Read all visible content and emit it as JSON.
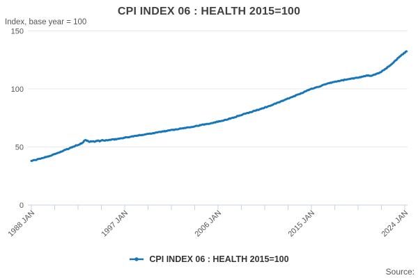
{
  "chart_data": {
    "type": "line",
    "title": "CPI INDEX 06 : HEALTH 2015=100",
    "subtitle": "Index, base year = 100",
    "legend_label": "CPI INDEX 06 : HEALTH 2015=100",
    "source_label": "Source:",
    "x_axis": {
      "tick_labels": [
        "1988 JAN",
        "1997 JAN",
        "2006 JAN",
        "2015 JAN",
        "2024 JAN"
      ],
      "tick_label_years": [
        1988,
        1997,
        2006,
        2015,
        2024
      ],
      "minor_ticks_between_labels": 3,
      "range": [
        1988,
        2024.3
      ]
    },
    "y_axis": {
      "ticks": [
        0,
        50,
        100,
        150
      ],
      "range": [
        0,
        150
      ]
    },
    "legend_position": "bottom-center",
    "grid": "horizontal-only",
    "colors": {
      "line": "#1576bc",
      "grid": "#e6e6e6",
      "axis": "#c9d2e3",
      "tick_text": "#555555",
      "title_text": "#414042"
    },
    "series": [
      {
        "name": "CPI INDEX 06 : HEALTH 2015=100",
        "color": "#1576bc",
        "points": [
          [
            1988.0,
            38.0
          ],
          [
            1988.5,
            39.0
          ],
          [
            1989.0,
            40.3
          ],
          [
            1989.5,
            41.6
          ],
          [
            1990.0,
            43.0
          ],
          [
            1990.5,
            44.7
          ],
          [
            1991.0,
            46.4
          ],
          [
            1991.5,
            48.2
          ],
          [
            1992.0,
            50.0
          ],
          [
            1992.5,
            51.8
          ],
          [
            1992.9,
            53.2
          ],
          [
            1993.17,
            55.8
          ],
          [
            1993.42,
            55.2
          ],
          [
            1993.58,
            54.3
          ],
          [
            1993.83,
            55.0
          ],
          [
            1994.08,
            54.5
          ],
          [
            1994.33,
            55.4
          ],
          [
            1994.58,
            55.0
          ],
          [
            1994.83,
            55.7
          ],
          [
            1995.0,
            55.5
          ],
          [
            1995.5,
            56.0
          ],
          [
            1996.0,
            56.5
          ],
          [
            1996.5,
            57.2
          ],
          [
            1997.0,
            58.0
          ],
          [
            1998.0,
            59.4
          ],
          [
            1999.0,
            60.9
          ],
          [
            2000.0,
            62.3
          ],
          [
            2001.0,
            63.8
          ],
          [
            2002.0,
            65.2
          ],
          [
            2003.0,
            66.7
          ],
          [
            2004.0,
            68.2
          ],
          [
            2005.0,
            69.9
          ],
          [
            2006.0,
            71.8
          ],
          [
            2007.0,
            74.0
          ],
          [
            2008.0,
            76.8
          ],
          [
            2009.0,
            79.6
          ],
          [
            2010.0,
            82.4
          ],
          [
            2011.0,
            85.4
          ],
          [
            2012.0,
            88.9
          ],
          [
            2013.0,
            92.5
          ],
          [
            2014.0,
            96.2
          ],
          [
            2015.0,
            100.0
          ],
          [
            2016.0,
            102.8
          ],
          [
            2017.0,
            105.6
          ],
          [
            2018.0,
            107.4
          ],
          [
            2019.0,
            109.0
          ],
          [
            2020.0,
            110.6
          ],
          [
            2020.42,
            111.6
          ],
          [
            2020.75,
            110.9
          ],
          [
            2021.0,
            111.9
          ],
          [
            2021.5,
            113.7
          ],
          [
            2022.0,
            116.1
          ],
          [
            2022.5,
            119.6
          ],
          [
            2023.0,
            123.6
          ],
          [
            2023.5,
            127.6
          ],
          [
            2024.0,
            131.2
          ],
          [
            2024.17,
            132.2
          ]
        ]
      }
    ]
  }
}
